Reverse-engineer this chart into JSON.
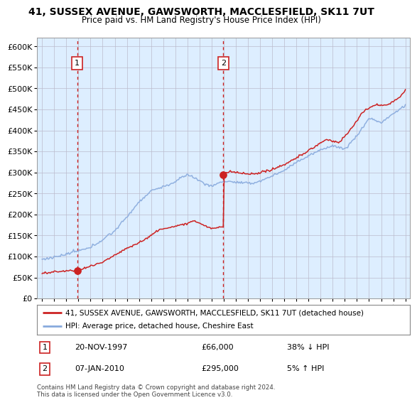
{
  "title": "41, SUSSEX AVENUE, GAWSWORTH, MACCLESFIELD, SK11 7UT",
  "subtitle": "Price paid vs. HM Land Registry's House Price Index (HPI)",
  "legend_line1": "41, SUSSEX AVENUE, GAWSWORTH, MACCLESFIELD, SK11 7UT (detached house)",
  "legend_line2": "HPI: Average price, detached house, Cheshire East",
  "annotation1_date": "20-NOV-1997",
  "annotation1_price": "£66,000",
  "annotation1_hpi": "38% ↓ HPI",
  "annotation2_date": "07-JAN-2010",
  "annotation2_price": "£295,000",
  "annotation2_hpi": "5% ↑ HPI",
  "footer": "Contains HM Land Registry data © Crown copyright and database right 2024.\nThis data is licensed under the Open Government Licence v3.0.",
  "property_color": "#cc2222",
  "hpi_color": "#88aadd",
  "vline_color": "#cc2222",
  "background_color": "#ddeeff",
  "marker1_x_year": 1997.89,
  "marker1_y": 66000,
  "marker2_x_year": 2009.97,
  "marker2_y": 295000,
  "ylim": [
    0,
    620000
  ],
  "xlim_start": 1994.6,
  "xlim_end": 2025.4
}
